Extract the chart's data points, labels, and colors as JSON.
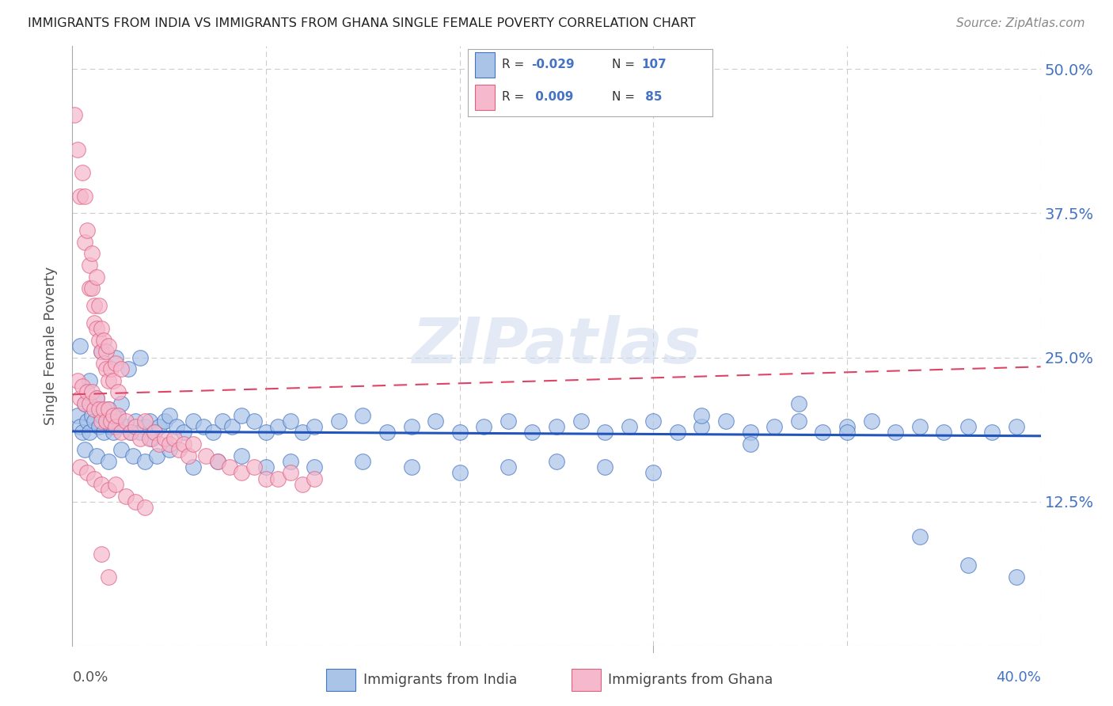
{
  "title": "IMMIGRANTS FROM INDIA VS IMMIGRANTS FROM GHANA SINGLE FEMALE POVERTY CORRELATION CHART",
  "source": "Source: ZipAtlas.com",
  "ylabel": "Single Female Poverty",
  "xlim": [
    0.0,
    0.4
  ],
  "ylim": [
    0.0,
    0.52
  ],
  "legend_label1": "Immigrants from India",
  "legend_label2": "Immigrants from Ghana",
  "R1": "-0.029",
  "N1": "107",
  "R2": "0.009",
  "N2": "85",
  "watermark": "ZIPatlas",
  "color_india_fill": "#aac4e8",
  "color_india_edge": "#4472c4",
  "color_ghana_fill": "#f5b8cc",
  "color_ghana_edge": "#e06080",
  "color_india_trend": "#2255bb",
  "color_ghana_trend": "#dd4466",
  "india_x": [
    0.002,
    0.003,
    0.004,
    0.005,
    0.006,
    0.007,
    0.008,
    0.009,
    0.01,
    0.011,
    0.012,
    0.013,
    0.014,
    0.015,
    0.016,
    0.017,
    0.018,
    0.019,
    0.02,
    0.022,
    0.024,
    0.026,
    0.028,
    0.03,
    0.032,
    0.034,
    0.036,
    0.038,
    0.04,
    0.043,
    0.046,
    0.05,
    0.054,
    0.058,
    0.062,
    0.066,
    0.07,
    0.075,
    0.08,
    0.085,
    0.09,
    0.095,
    0.1,
    0.11,
    0.12,
    0.13,
    0.14,
    0.15,
    0.16,
    0.17,
    0.18,
    0.19,
    0.2,
    0.21,
    0.22,
    0.23,
    0.24,
    0.25,
    0.26,
    0.27,
    0.28,
    0.29,
    0.3,
    0.31,
    0.32,
    0.33,
    0.34,
    0.35,
    0.36,
    0.37,
    0.38,
    0.39,
    0.005,
    0.01,
    0.015,
    0.02,
    0.025,
    0.03,
    0.035,
    0.04,
    0.05,
    0.06,
    0.07,
    0.08,
    0.09,
    0.1,
    0.12,
    0.14,
    0.16,
    0.18,
    0.2,
    0.22,
    0.24,
    0.26,
    0.28,
    0.3,
    0.32,
    0.35,
    0.37,
    0.39,
    0.003,
    0.007,
    0.012,
    0.018,
    0.023,
    0.028,
    0.033
  ],
  "india_y": [
    0.2,
    0.19,
    0.185,
    0.21,
    0.195,
    0.185,
    0.2,
    0.195,
    0.215,
    0.19,
    0.2,
    0.185,
    0.195,
    0.205,
    0.19,
    0.185,
    0.195,
    0.2,
    0.21,
    0.19,
    0.185,
    0.195,
    0.185,
    0.19,
    0.195,
    0.185,
    0.19,
    0.195,
    0.2,
    0.19,
    0.185,
    0.195,
    0.19,
    0.185,
    0.195,
    0.19,
    0.2,
    0.195,
    0.185,
    0.19,
    0.195,
    0.185,
    0.19,
    0.195,
    0.2,
    0.185,
    0.19,
    0.195,
    0.185,
    0.19,
    0.195,
    0.185,
    0.19,
    0.195,
    0.185,
    0.19,
    0.195,
    0.185,
    0.19,
    0.195,
    0.185,
    0.19,
    0.195,
    0.185,
    0.19,
    0.195,
    0.185,
    0.19,
    0.185,
    0.19,
    0.185,
    0.19,
    0.17,
    0.165,
    0.16,
    0.17,
    0.165,
    0.16,
    0.165,
    0.17,
    0.155,
    0.16,
    0.165,
    0.155,
    0.16,
    0.155,
    0.16,
    0.155,
    0.15,
    0.155,
    0.16,
    0.155,
    0.15,
    0.2,
    0.175,
    0.21,
    0.185,
    0.095,
    0.07,
    0.06,
    0.26,
    0.23,
    0.255,
    0.25,
    0.24,
    0.25,
    0.18
  ],
  "ghana_x": [
    0.001,
    0.002,
    0.003,
    0.004,
    0.005,
    0.005,
    0.006,
    0.007,
    0.007,
    0.008,
    0.008,
    0.009,
    0.009,
    0.01,
    0.01,
    0.011,
    0.011,
    0.012,
    0.012,
    0.013,
    0.013,
    0.014,
    0.014,
    0.015,
    0.015,
    0.016,
    0.017,
    0.018,
    0.019,
    0.02,
    0.002,
    0.003,
    0.004,
    0.005,
    0.006,
    0.007,
    0.008,
    0.009,
    0.01,
    0.011,
    0.012,
    0.013,
    0.014,
    0.015,
    0.016,
    0.017,
    0.018,
    0.019,
    0.02,
    0.022,
    0.024,
    0.026,
    0.028,
    0.03,
    0.032,
    0.034,
    0.036,
    0.038,
    0.04,
    0.042,
    0.044,
    0.046,
    0.048,
    0.05,
    0.055,
    0.06,
    0.065,
    0.07,
    0.075,
    0.08,
    0.085,
    0.09,
    0.095,
    0.1,
    0.003,
    0.006,
    0.009,
    0.012,
    0.015,
    0.018,
    0.022,
    0.026,
    0.03,
    0.012,
    0.015
  ],
  "ghana_y": [
    0.46,
    0.43,
    0.39,
    0.41,
    0.39,
    0.35,
    0.36,
    0.33,
    0.31,
    0.34,
    0.31,
    0.295,
    0.28,
    0.32,
    0.275,
    0.295,
    0.265,
    0.275,
    0.255,
    0.265,
    0.245,
    0.255,
    0.24,
    0.26,
    0.23,
    0.24,
    0.23,
    0.245,
    0.22,
    0.24,
    0.23,
    0.215,
    0.225,
    0.21,
    0.22,
    0.21,
    0.22,
    0.205,
    0.215,
    0.205,
    0.195,
    0.205,
    0.195,
    0.205,
    0.195,
    0.2,
    0.19,
    0.2,
    0.185,
    0.195,
    0.185,
    0.19,
    0.18,
    0.195,
    0.18,
    0.185,
    0.175,
    0.18,
    0.175,
    0.18,
    0.17,
    0.175,
    0.165,
    0.175,
    0.165,
    0.16,
    0.155,
    0.15,
    0.155,
    0.145,
    0.145,
    0.15,
    0.14,
    0.145,
    0.155,
    0.15,
    0.145,
    0.14,
    0.135,
    0.14,
    0.13,
    0.125,
    0.12,
    0.08,
    0.06
  ]
}
